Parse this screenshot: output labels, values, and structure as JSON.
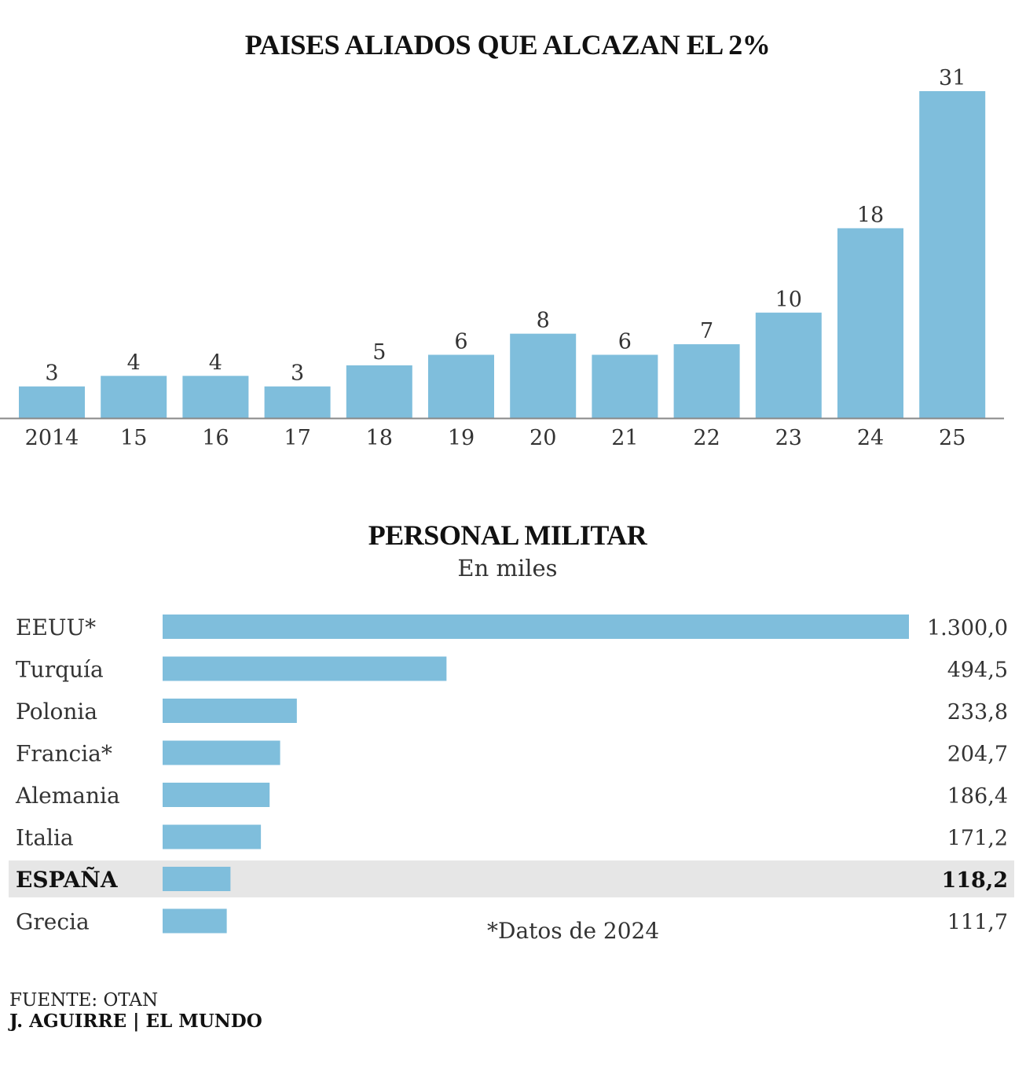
{
  "colors": {
    "bar": "#7fbedc",
    "axis": "#888888",
    "highlight_bg": "#e6e6e6"
  },
  "chart_data": [
    {
      "type": "bar",
      "title": "PAISES ALIADOS QUE ALCAZAN EL 2%",
      "categories": [
        "2014",
        "15",
        "16",
        "17",
        "18",
        "19",
        "20",
        "21",
        "22",
        "23",
        "24",
        "25"
      ],
      "values": [
        3,
        4,
        4,
        3,
        5,
        6,
        8,
        6,
        7,
        10,
        18,
        31
      ],
      "ylim": [
        0,
        31
      ]
    },
    {
      "type": "bar",
      "orientation": "horizontal",
      "title": "PERSONAL MILITAR",
      "subtitle": "En miles",
      "categories": [
        "EEUU*",
        "Turquía",
        "Polonia",
        "Francia*",
        "Alemania",
        "Italia",
        "ESPAÑA",
        "Grecia"
      ],
      "values": [
        1300.0,
        494.5,
        233.8,
        204.7,
        186.4,
        171.2,
        118.2,
        111.7
      ],
      "value_labels": [
        "1.300,0",
        "494,5",
        "233,8",
        "204,7",
        "186,4",
        "171,2",
        "118,2",
        "111,7"
      ],
      "highlight": "ESPAÑA",
      "note": "*Datos de 2024",
      "xlim": [
        0,
        1300
      ]
    }
  ],
  "footer": {
    "source": "FUENTE: OTAN",
    "credit": "J. AGUIRRE | EL MUNDO"
  }
}
